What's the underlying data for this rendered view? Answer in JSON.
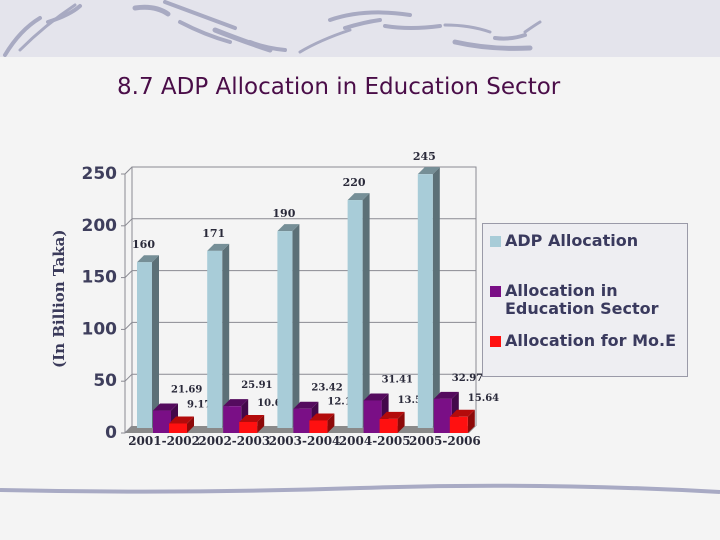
{
  "slide": {
    "title": "8.7 ADP Allocation in Education Sector"
  },
  "chart_data": {
    "type": "bar",
    "title": "8.7 ADP Allocation in Education Sector",
    "xlabel": "",
    "ylabel": "(In Billion Taka)",
    "ylim": [
      0,
      250
    ],
    "yticks": [
      "0",
      "50",
      "100",
      "150",
      "200",
      "250"
    ],
    "grid": true,
    "legend_position": "right",
    "categories": [
      "2001-2002",
      "2002-2003",
      "2003-2004",
      "2004-2005",
      "2005-2006"
    ],
    "series": [
      {
        "name": "ADP Allocation",
        "color": "#a8ccd8",
        "values": [
          160,
          171,
          190,
          220,
          245
        ],
        "labels": [
          "160",
          "171",
          "190",
          "220",
          "245"
        ]
      },
      {
        "name": "Allocation in Education Sector",
        "color": "#7a0f86",
        "values": [
          21.69,
          25.91,
          23.42,
          31.41,
          32.97
        ],
        "labels": [
          "21.69",
          "25.91",
          "23.42",
          "31.41",
          "32.97"
        ]
      },
      {
        "name": "Allocation for Mo.E",
        "color": "#ff1010",
        "values": [
          9.17,
          10.65,
          12.11,
          13.59,
          15.64
        ],
        "labels": [
          "9.17",
          "10.65",
          "12.11",
          "13.59",
          "15.64"
        ]
      }
    ]
  },
  "legend": {
    "items": [
      {
        "label": "ADP Allocation",
        "color": "#a8ccd8"
      },
      {
        "label": "Allocation in Education Sector",
        "color": "#7a0f86"
      },
      {
        "label": "Allocation for Mo.E",
        "color": "#ff1010"
      }
    ]
  }
}
